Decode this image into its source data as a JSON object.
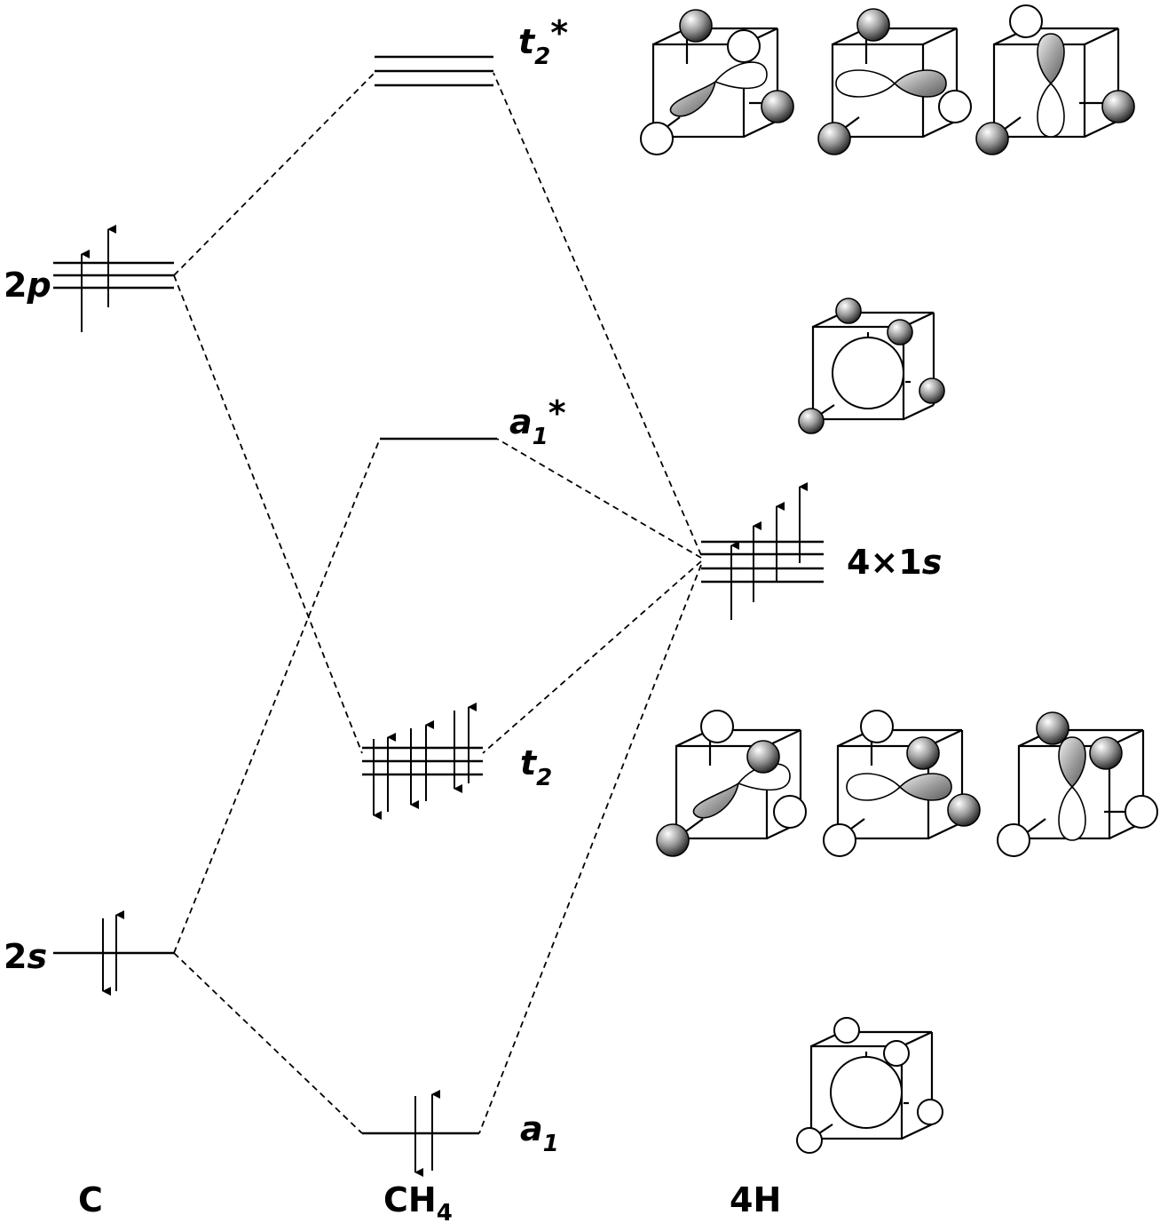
{
  "columns": {
    "carbon": "C",
    "methane_main": "CH",
    "methane_sub": "4",
    "hydrogens": "4H"
  },
  "atomic_levels": {
    "c_2p": {
      "prefix": "2",
      "italic": "p",
      "electrons": "2 up"
    },
    "c_2s": {
      "prefix": "2",
      "italic": "s",
      "electrons": "paired"
    },
    "h_1s": {
      "prefix": "4×1",
      "italic": "s",
      "electrons": "4 up"
    }
  },
  "molecular_orbitals": {
    "t2_star": {
      "main": "t",
      "sub": "2",
      "sup": "*",
      "degeneracy": 3,
      "occupancy": 0
    },
    "a1_star": {
      "main": "a",
      "sub": "1",
      "sup": "*",
      "degeneracy": 1,
      "occupancy": 0
    },
    "t2": {
      "main": "t",
      "sub": "2",
      "degeneracy": 3,
      "occupancy": 6
    },
    "a1": {
      "main": "a",
      "sub": "1",
      "degeneracy": 1,
      "occupancy": 2
    }
  },
  "colors": {
    "ink": "#000000",
    "shaded_lobe": "#8c8c8c",
    "white_lobe": "#ffffff"
  }
}
